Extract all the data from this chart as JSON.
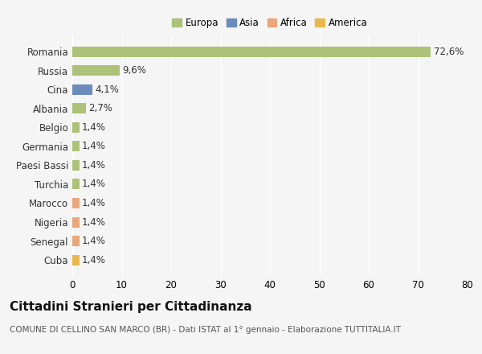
{
  "categories": [
    "Romania",
    "Russia",
    "Cina",
    "Albania",
    "Belgio",
    "Germania",
    "Paesi Bassi",
    "Turchia",
    "Marocco",
    "Nigeria",
    "Senegal",
    "Cuba"
  ],
  "values": [
    72.6,
    9.6,
    4.1,
    2.7,
    1.4,
    1.4,
    1.4,
    1.4,
    1.4,
    1.4,
    1.4,
    1.4
  ],
  "labels": [
    "72,6%",
    "9,6%",
    "4,1%",
    "2,7%",
    "1,4%",
    "1,4%",
    "1,4%",
    "1,4%",
    "1,4%",
    "1,4%",
    "1,4%",
    "1,4%"
  ],
  "colors": [
    "#adc178",
    "#adc178",
    "#6b8cba",
    "#adc178",
    "#adc178",
    "#adc178",
    "#adc178",
    "#adc178",
    "#e8a87c",
    "#e8a87c",
    "#e8a87c",
    "#e8b84b"
  ],
  "legend_labels": [
    "Europa",
    "Asia",
    "Africa",
    "America"
  ],
  "legend_colors": [
    "#adc178",
    "#6b8cba",
    "#e8a87c",
    "#e8b84b"
  ],
  "xlim": [
    0,
    80
  ],
  "xticks": [
    0,
    10,
    20,
    30,
    40,
    50,
    60,
    70,
    80
  ],
  "title": "Cittadini Stranieri per Cittadinanza",
  "subtitle": "COMUNE DI CELLINO SAN MARCO (BR) - Dati ISTAT al 1° gennaio - Elaborazione TUTTITALIA.IT",
  "bg_color": "#f5f5f5",
  "grid_color": "#ffffff",
  "bar_height": 0.55,
  "label_fontsize": 8.5,
  "ytick_fontsize": 8.5,
  "xtick_fontsize": 8.5,
  "title_fontsize": 11,
  "subtitle_fontsize": 7.5
}
